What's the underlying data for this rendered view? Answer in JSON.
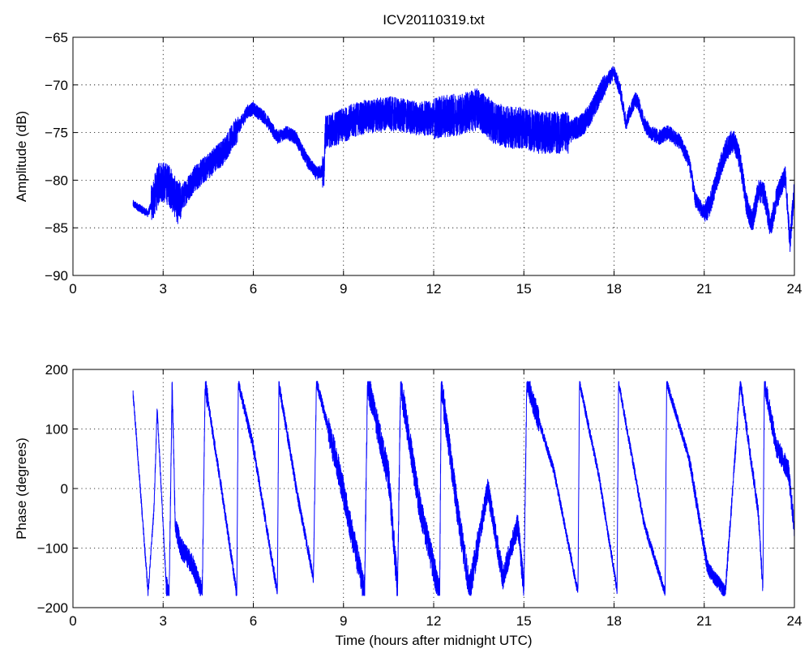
{
  "title": "ICV20110319.txt",
  "chart_data": [
    {
      "type": "line",
      "title": "ICV20110319.txt",
      "xlabel": "",
      "ylabel": "Amplitude (dB)",
      "xlim": [
        0,
        24
      ],
      "ylim": [
        -90,
        -65
      ],
      "xticks": [
        0,
        3,
        6,
        9,
        12,
        15,
        18,
        21,
        24
      ],
      "yticks": [
        -90,
        -85,
        -80,
        -75,
        -70,
        -65
      ],
      "grid": true,
      "line_color": "#0000ff",
      "noise_db": [
        [
          2.0,
          2.6,
          0.4
        ],
        [
          2.6,
          3.6,
          2.2
        ],
        [
          3.6,
          5.5,
          1.4
        ],
        [
          5.5,
          8.3,
          0.7
        ],
        [
          8.3,
          12.0,
          1.8
        ],
        [
          12.0,
          16.5,
          2.2
        ],
        [
          16.5,
          17.7,
          1.2
        ],
        [
          17.7,
          21.0,
          0.8
        ],
        [
          21.0,
          24.0,
          1.2
        ]
      ],
      "series": [
        {
          "x": [
            2.0,
            2.5,
            2.9,
            3.2,
            3.5,
            4.0,
            4.5,
            5.0,
            5.5,
            5.8,
            6.0,
            6.4,
            6.8,
            7.1,
            7.4,
            7.8,
            8.1,
            8.35,
            8.4,
            8.8,
            9.5,
            10.5,
            11.5,
            12.0,
            13.0,
            13.5,
            14.0,
            14.5,
            15.0,
            15.5,
            16.0,
            16.5,
            17.0,
            17.3,
            17.6,
            17.9,
            18.0,
            18.2,
            18.4,
            18.5,
            18.7,
            18.8,
            19.0,
            19.2,
            19.5,
            19.8,
            20.2,
            20.5,
            20.7,
            21.0,
            21.2,
            21.5,
            21.7,
            21.9,
            22.0,
            22.2,
            22.4,
            22.6,
            22.8,
            23.0,
            23.2,
            23.4,
            23.7,
            23.85,
            24.0
          ],
          "y": [
            -82.5,
            -83.5,
            -80.0,
            -80.5,
            -82.5,
            -80.0,
            -78.5,
            -77.0,
            -74.5,
            -72.8,
            -72.5,
            -73.5,
            -75.5,
            -75.0,
            -75.5,
            -78.0,
            -79.3,
            -79.0,
            -75.0,
            -74.5,
            -73.5,
            -73.0,
            -73.5,
            -73.5,
            -73.0,
            -72.5,
            -74.0,
            -74.5,
            -74.5,
            -75.0,
            -75.0,
            -75.0,
            -74.0,
            -72.5,
            -70.5,
            -69.0,
            -68.7,
            -70.5,
            -74.0,
            -73.0,
            -71.5,
            -71.8,
            -74.0,
            -75.0,
            -75.5,
            -75.0,
            -76.0,
            -78.0,
            -82.0,
            -83.5,
            -82.5,
            -79.0,
            -77.0,
            -76.0,
            -76.0,
            -78.0,
            -82.5,
            -84.5,
            -81.0,
            -81.5,
            -85.0,
            -82.0,
            -79.5,
            -86.5,
            -81.0
          ]
        }
      ]
    },
    {
      "type": "line",
      "title": "",
      "xlabel": "Time (hours after midnight UTC)",
      "ylabel": "Phase (degrees)",
      "xlim": [
        0,
        24
      ],
      "ylim": [
        -200,
        200
      ],
      "xticks": [
        0,
        3,
        6,
        9,
        12,
        15,
        18,
        21,
        24
      ],
      "yticks": [
        -200,
        -100,
        0,
        100,
        200
      ],
      "grid": true,
      "line_color": "#0000ff",
      "wrap": [
        -180,
        180
      ],
      "noise_deg": [
        [
          2.0,
          3.1,
          8
        ],
        [
          3.1,
          4.5,
          18
        ],
        [
          4.5,
          8.5,
          10
        ],
        [
          8.5,
          13.5,
          25
        ],
        [
          13.5,
          15.5,
          20
        ],
        [
          15.5,
          20.5,
          8
        ],
        [
          20.5,
          23.0,
          12
        ],
        [
          23.0,
          24.0,
          18
        ]
      ],
      "series": [
        {
          "x": [
            2.0,
            2.5,
            2.7,
            2.8,
            3.1,
            3.2,
            3.3,
            3.4,
            3.6,
            4.0,
            4.3,
            4.4,
            5.0,
            5.45,
            5.5,
            6.0,
            6.8,
            6.85,
            7.5,
            8.0,
            8.1,
            8.8,
            9.7,
            9.8,
            10.5,
            10.8,
            10.9,
            11.5,
            12.2,
            12.25,
            12.8,
            13.2,
            13.8,
            14.3,
            14.8,
            15.0,
            15.1,
            16.0,
            16.8,
            16.85,
            17.5,
            18.1,
            18.15,
            19.0,
            19.7,
            19.75,
            20.5,
            21.1,
            21.2,
            21.5,
            21.7,
            22.2,
            22.8,
            22.95,
            23.0,
            23.4,
            23.8,
            24.0
          ],
          "y": [
            160,
            -175,
            -30,
            135,
            -160,
            -180,
            178,
            -60,
            -100,
            -130,
            -175,
            175,
            -20,
            -178,
            178,
            70,
            -175,
            175,
            -20,
            -150,
            180,
            40,
            -175,
            178,
            20,
            -170,
            175,
            -20,
            -178,
            175,
            -40,
            -170,
            0,
            -150,
            -60,
            -170,
            180,
            30,
            -175,
            178,
            20,
            -170,
            178,
            -60,
            -175,
            178,
            50,
            -130,
            -140,
            -160,
            -175,
            178,
            -40,
            -170,
            180,
            70,
            30,
            -70
          ]
        }
      ]
    }
  ]
}
